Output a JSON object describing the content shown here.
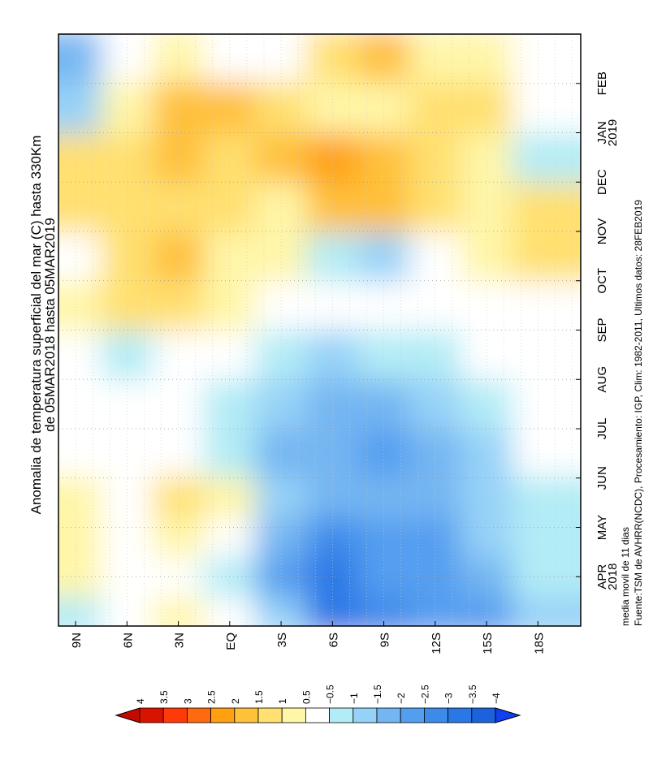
{
  "chart_data": {
    "type": "heatmap",
    "title": "Anomalia de temperatura superficial del mar (C) hasta 330Km",
    "subtitle": "de 05MAR2018 hasta 05MAR2019",
    "footnote_1": "media movil de 11 dias",
    "footnote_2": "Fuente:TSM de AVHRR(NCDC), Procesamiento: IGP, Clim: 1982-2011, Ultimos datos: 28FEB2019",
    "lat_ticks": [
      "9N",
      "6N",
      "3N",
      "EQ",
      "3S",
      "6S",
      "9S",
      "12S",
      "15S",
      "18S"
    ],
    "lat_values": [
      9,
      6,
      3,
      0,
      -3,
      -6,
      -9,
      -12,
      -15,
      -18
    ],
    "lat_range": [
      10,
      -20.5
    ],
    "time_ticks": [
      "APR",
      "MAY",
      "JUN",
      "JUL",
      "AUG",
      "SEP",
      "OCT",
      "NOV",
      "DEC",
      "JAN",
      "FEB"
    ],
    "time_tick_months": [
      1,
      2,
      3,
      4,
      5,
      6,
      7,
      8,
      9,
      10,
      11
    ],
    "year_labels": [
      {
        "month_index": 1,
        "label": "2018"
      },
      {
        "month_index": 10,
        "label": "2019"
      }
    ],
    "time_range_months": [
      0,
      12
    ],
    "grid_rows_month_center": [
      0.2,
      1.0,
      1.8,
      2.6,
      3.5,
      4.5,
      5.5,
      6.5,
      7.5,
      8.5,
      9.5,
      10.5,
      11.6
    ],
    "values": [
      [
        -0.5,
        0,
        0.5,
        0,
        -1,
        -3,
        -2.5,
        -2,
        -2,
        -1
      ],
      [
        0.5,
        0,
        0,
        -0.5,
        -2,
        -3,
        -2,
        -2,
        -1.5,
        -0.5
      ],
      [
        0.5,
        0,
        0.5,
        0,
        -1.5,
        -2.5,
        -2,
        -2,
        -1,
        -0.5
      ],
      [
        0.5,
        0,
        1,
        0.5,
        -1,
        -1.5,
        -1.5,
        -1.5,
        -1,
        -0.5
      ],
      [
        0,
        0,
        0,
        -0.5,
        -1.5,
        -1.5,
        -2,
        -1.5,
        -1,
        0
      ],
      [
        0,
        0,
        0,
        -0.5,
        -1,
        -1.5,
        -1.5,
        -1,
        -0.5,
        0
      ],
      [
        0,
        -0.5,
        0,
        0,
        -0.5,
        -1,
        -0.5,
        -0.5,
        0,
        0
      ],
      [
        0.5,
        1,
        1,
        0.5,
        0,
        0,
        0,
        0,
        0,
        0
      ],
      [
        0,
        1,
        1.5,
        0.5,
        0.5,
        -0.5,
        -1,
        0,
        0.5,
        1
      ],
      [
        1,
        1,
        1,
        1,
        0.5,
        1.5,
        1.5,
        1,
        0.5,
        1
      ],
      [
        1,
        1,
        1.5,
        1,
        1.5,
        2,
        1.5,
        1,
        0.5,
        -0.5
      ],
      [
        -1,
        0.5,
        1.5,
        1.5,
        1,
        0.5,
        0.5,
        1,
        1,
        0
      ],
      [
        -1.5,
        0,
        0.5,
        0,
        0,
        1,
        1.5,
        0.5,
        0.5,
        0
      ]
    ],
    "colorbar": {
      "labels": [
        "4",
        "3.5",
        "3",
        "2.5",
        "2",
        "1.5",
        "1",
        "0.5",
        "-0.5",
        "-1",
        "-1.5",
        "-2",
        "-2.5",
        "-3",
        "-3.5",
        "-4"
      ],
      "levels": [
        4,
        3.5,
        3,
        2.5,
        2,
        1.5,
        1,
        0.5,
        -0.5,
        -1,
        -1.5,
        -2,
        -2.5,
        -3,
        -3.5,
        -4
      ],
      "colors": [
        "#c40a00",
        "#d81400",
        "#ff3a08",
        "#ff6a10",
        "#ffa010",
        "#ffc03a",
        "#ffe070",
        "#fff6a8",
        "#ffffff",
        "#b2ecf6",
        "#96d2f8",
        "#74b6f2",
        "#549ef0",
        "#3e8aea",
        "#2a78e6",
        "#1c62dc",
        "#1040f0"
      ]
    }
  }
}
